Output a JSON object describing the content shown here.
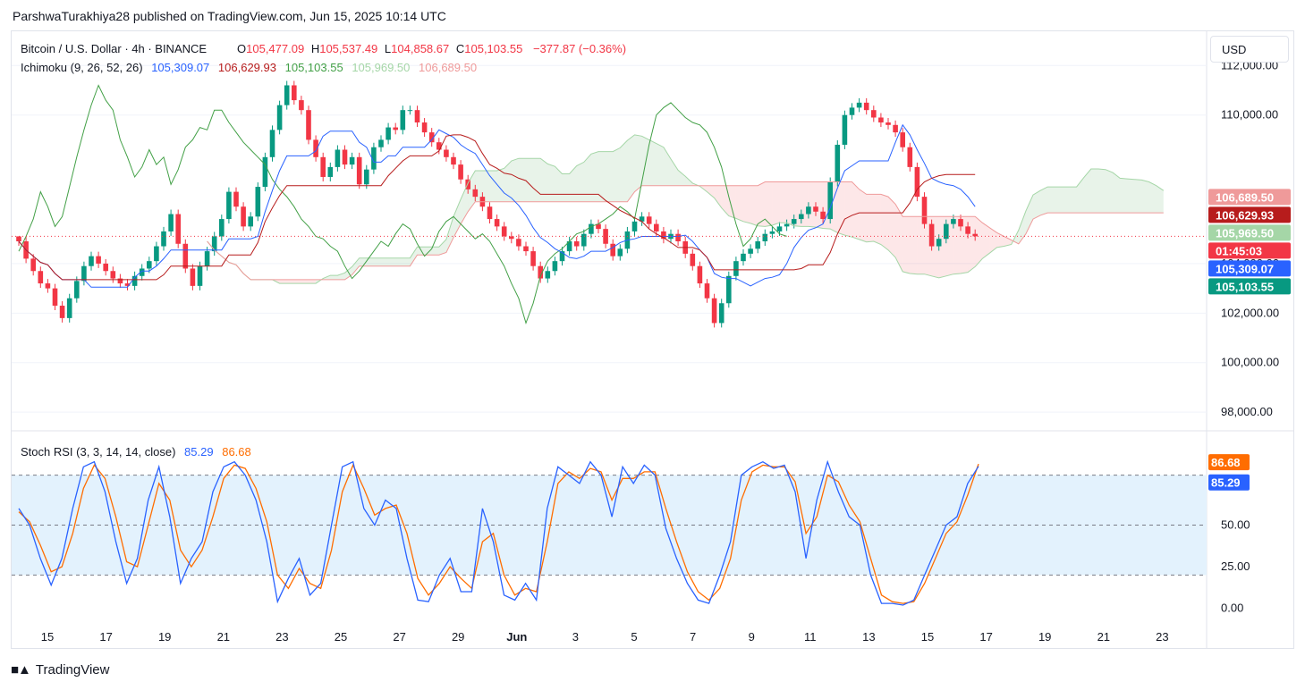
{
  "publisher": "ParshwaTurakhiya28 published on TradingView.com, Jun 15, 2025 10:14 UTC",
  "currency_button": "USD",
  "logo_text": "TradingView",
  "logo_icon": "tradingview-logo-icon",
  "colors": {
    "up": "#089981",
    "down": "#f23645",
    "tenkan": "#2962ff",
    "kijun": "#b71c1c",
    "lagging": "#43a047",
    "span_a": "#a5d6a7",
    "span_b": "#ef9a9a",
    "k_line": "#2962ff",
    "d_line": "#ff6d00",
    "band": "#e3f2fd"
  },
  "chart_data": [
    {
      "type": "candlestick",
      "title": "Bitcoin / U.S. Dollar · 4h · BINANCE",
      "ohlc": {
        "o_label": "O",
        "o": "105,477.09",
        "h_label": "H",
        "h": "105,537.49",
        "l_label": "L",
        "l": "104,858.67",
        "c_label": "C",
        "c": "105,103.55",
        "change": "−377.87 (−0.36%)"
      },
      "indicator": {
        "name": "Ichimoku (9, 26, 52, 26)",
        "values": [
          "105,309.07",
          "106,629.93",
          "105,103.55",
          "105,969.50",
          "106,689.50"
        ]
      },
      "ylim": [
        97500,
        112300
      ],
      "y_ticks": [
        "98,000.00",
        "100,000.00",
        "102,000.00",
        "104,000.00",
        "110,000.00",
        "112,000.00"
      ],
      "y_tick_values": [
        98000,
        100000,
        102000,
        104000,
        110000,
        112000
      ],
      "x_ticks": [
        "15",
        "17",
        "19",
        "21",
        "23",
        "25",
        "27",
        "29",
        "Jun",
        "3",
        "5",
        "7",
        "9",
        "11",
        "13",
        "15",
        "17",
        "19",
        "21",
        "23"
      ],
      "price_labels": [
        {
          "text": "106,689.50",
          "value": 106689.5,
          "color": "#ef9a9a"
        },
        {
          "text": "106,629.93",
          "value": 106629.93,
          "color": "#b71c1c"
        },
        {
          "text": "105,969.50",
          "value": 105969.5,
          "color": "#a5d6a7"
        },
        {
          "text": "105,309.07",
          "value": 105309.07,
          "color": "#2962ff"
        },
        {
          "text": "01:45:03",
          "value": 105620,
          "color": "#f23645"
        },
        {
          "text": "105,103.55",
          "value": 105103.55,
          "color": "#089981"
        }
      ],
      "close_series": [
        104900,
        104200,
        103700,
        103200,
        103000,
        102300,
        101800,
        102600,
        103300,
        103900,
        104300,
        104000,
        103700,
        103400,
        103200,
        103100,
        103500,
        103800,
        104100,
        104700,
        105300,
        106000,
        104800,
        103800,
        103100,
        103900,
        104500,
        105100,
        105800,
        106900,
        106300,
        105500,
        105900,
        107100,
        108300,
        109400,
        110400,
        111200,
        110600,
        110200,
        109000,
        108300,
        107500,
        107900,
        108600,
        108000,
        108300,
        107200,
        107800,
        108700,
        109000,
        109500,
        109400,
        110200,
        110200,
        109700,
        109300,
        108900,
        108600,
        108300,
        108000,
        107400,
        107000,
        106700,
        106300,
        105800,
        105500,
        105100,
        105000,
        104700,
        104500,
        103900,
        103400,
        103700,
        104100,
        104500,
        104900,
        104700,
        105200,
        105600,
        105400,
        104800,
        104300,
        104600,
        105300,
        105700,
        105900,
        105600,
        105300,
        105000,
        105200,
        104900,
        104400,
        103900,
        103200,
        102600,
        101600,
        102400,
        103500,
        104100,
        104400,
        104600,
        104900,
        105200,
        105300,
        105500,
        105600,
        105800,
        106000,
        106300,
        106100,
        105800,
        107300,
        108800,
        110000,
        110300,
        110500,
        110200,
        109900,
        109700,
        109600,
        109300,
        108700,
        107900,
        106700,
        105600,
        104700,
        105000,
        105600,
        105800,
        105500,
        105200,
        105103
      ]
    },
    {
      "type": "line",
      "title": "Stoch RSI (3, 3, 14, 14, close)",
      "series": [
        {
          "name": "",
          "value_label": "85.29",
          "color": "#2962ff"
        },
        {
          "name": "",
          "value_label": "86.68",
          "color": "#ff6d00"
        }
      ],
      "ylim": [
        -5,
        105
      ],
      "y_ticks": [
        "0.00",
        "25.00",
        "50.00",
        "75.00"
      ],
      "y_tick_values": [
        0,
        25,
        50,
        75
      ],
      "bands": [
        20,
        50,
        80
      ],
      "k_values": [
        60,
        50,
        30,
        14,
        30,
        60,
        85,
        88,
        70,
        40,
        15,
        30,
        65,
        85,
        55,
        15,
        30,
        40,
        70,
        85,
        88,
        80,
        65,
        40,
        4,
        18,
        30,
        8,
        15,
        50,
        85,
        88,
        60,
        50,
        65,
        60,
        30,
        5,
        4,
        20,
        30,
        10,
        10,
        60,
        40,
        8,
        5,
        15,
        5,
        60,
        85,
        80,
        75,
        88,
        80,
        55,
        85,
        75,
        86,
        80,
        48,
        30,
        15,
        5,
        3,
        20,
        40,
        80,
        85,
        88,
        84,
        86,
        70,
        30,
        65,
        88,
        70,
        55,
        50,
        20,
        3,
        3,
        2,
        5,
        20,
        35,
        50,
        55,
        75,
        85.29
      ],
      "d_values": [
        58,
        52,
        38,
        22,
        25,
        45,
        72,
        86,
        78,
        55,
        28,
        25,
        50,
        75,
        65,
        35,
        25,
        35,
        55,
        78,
        86,
        84,
        72,
        52,
        20,
        12,
        24,
        15,
        12,
        35,
        70,
        86,
        72,
        56,
        60,
        62,
        45,
        18,
        8,
        15,
        25,
        18,
        12,
        40,
        45,
        20,
        8,
        12,
        10,
        40,
        75,
        82,
        78,
        84,
        82,
        65,
        78,
        78,
        82,
        82,
        60,
        40,
        22,
        10,
        5,
        12,
        30,
        65,
        82,
        86,
        85,
        85,
        76,
        45,
        55,
        80,
        76,
        62,
        52,
        30,
        8,
        4,
        3,
        4,
        15,
        30,
        45,
        52,
        68,
        86.68
      ]
    }
  ]
}
